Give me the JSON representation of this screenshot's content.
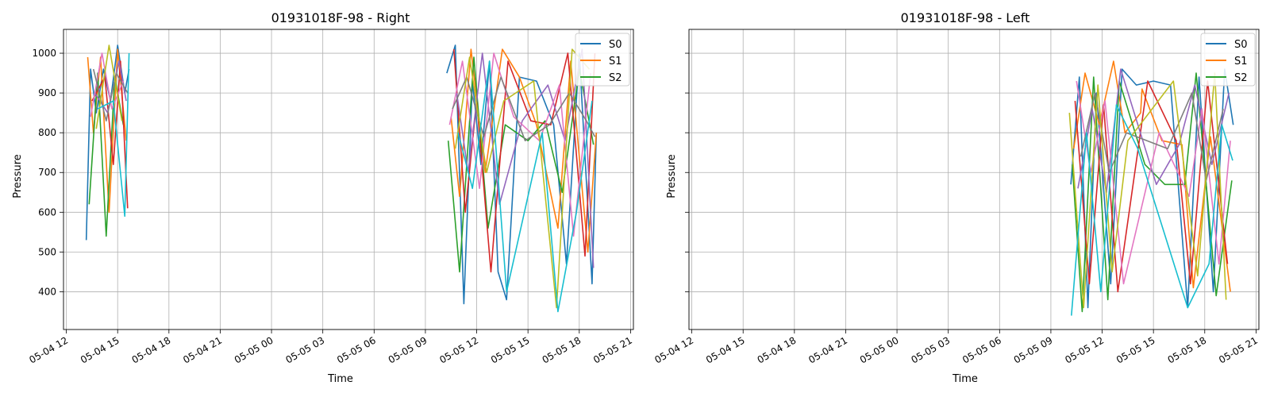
{
  "chart_data": [
    {
      "type": "line",
      "title": "01931018F-98 - Right",
      "xlabel": "Time",
      "ylabel": "Pressure",
      "x_range": [
        "2024-05-04 11:50",
        "2024-05-05 21:10"
      ],
      "ylim": [
        305,
        1060
      ],
      "x_ticks": [
        "05-04 12",
        "05-04 15",
        "05-04 18",
        "05-04 21",
        "05-05 00",
        "05-05 03",
        "05-05 06",
        "05-05 09",
        "05-05 12",
        "05-05 15",
        "05-05 18",
        "05-05 21"
      ],
      "y_ticks": [
        400,
        500,
        600,
        700,
        800,
        900,
        1000
      ],
      "grid": true,
      "legend": {
        "position": "upper right",
        "entries": [
          "S0",
          "S1",
          "S2"
        ]
      },
      "series": [
        {
          "name": "S0",
          "color": "#1f77b4",
          "segments": [
            {
              "x": [
                "2024-05-04 13:10",
                "2024-05-04 13:25",
                "2024-05-04 13:45",
                "2024-05-04 14:10",
                "2024-05-04 14:35",
                "2024-05-04 15:00",
                "2024-05-04 15:25",
                "2024-05-04 15:40"
              ],
              "y": [
                530,
                960,
                850,
                960,
                880,
                1020,
                900,
                960
              ]
            },
            {
              "x": [
                "2024-05-05 10:15",
                "2024-05-05 10:45",
                "2024-05-05 11:15",
                "2024-05-05 11:45",
                "2024-05-05 12:15",
                "2024-05-05 12:45",
                "2024-05-05 13:15",
                "2024-05-05 13:45",
                "2024-05-05 14:30",
                "2024-05-05 15:30",
                "2024-05-05 16:30",
                "2024-05-05 17:15",
                "2024-05-05 18:00",
                "2024-05-05 18:45",
                "2024-05-05 19:00"
              ],
              "y": [
                950,
                1020,
                370,
                930,
                720,
                980,
                450,
                380,
                940,
                930,
                820,
                470,
                1000,
                420,
                800
              ]
            }
          ]
        },
        {
          "name": "S1",
          "color": "#ff7f0e",
          "segments": [
            {
              "x": [
                "2024-05-04 13:15",
                "2024-05-04 13:35",
                "2024-05-04 14:00",
                "2024-05-04 14:30",
                "2024-05-04 15:00",
                "2024-05-04 15:30"
              ],
              "y": [
                990,
                800,
                990,
                600,
                1010,
                780
              ]
            },
            {
              "x": [
                "2024-05-05 10:30",
                "2024-05-05 11:00",
                "2024-05-05 11:40",
                "2024-05-05 12:30",
                "2024-05-05 13:30",
                "2024-05-05 14:30",
                "2024-05-05 15:30",
                "2024-05-05 16:45",
                "2024-05-05 17:30",
                "2024-05-05 18:30",
                "2024-05-05 19:00"
              ],
              "y": [
                840,
                640,
                1010,
                700,
                1010,
                940,
                820,
                560,
                980,
                500,
                800
              ]
            }
          ]
        },
        {
          "name": "S2",
          "color": "#2ca02c",
          "segments": [
            {
              "x": [
                "2024-05-04 13:20",
                "2024-05-04 13:50",
                "2024-05-04 14:20",
                "2024-05-04 14:50",
                "2024-05-04 15:20"
              ],
              "y": [
                620,
                950,
                540,
                940,
                820
              ]
            },
            {
              "x": [
                "2024-05-05 10:20",
                "2024-05-05 11:00",
                "2024-05-05 11:50",
                "2024-05-05 12:40",
                "2024-05-05 13:40",
                "2024-05-05 15:00",
                "2024-05-05 16:00",
                "2024-05-05 17:00",
                "2024-05-05 18:00",
                "2024-05-05 18:50"
              ],
              "y": [
                780,
                450,
                990,
                560,
                820,
                780,
                830,
                650,
                960,
                770
              ]
            }
          ]
        },
        {
          "name": "",
          "color": "#d62728",
          "segments": [
            {
              "x": [
                "2024-05-04 13:30",
                "2024-05-04 14:15",
                "2024-05-04 14:45",
                "2024-05-04 15:10",
                "2024-05-04 15:35"
              ],
              "y": [
                880,
                940,
                720,
                980,
                610
              ]
            },
            {
              "x": [
                "2024-05-05 10:40",
                "2024-05-05 11:20",
                "2024-05-05 12:00",
                "2024-05-05 12:50",
                "2024-05-05 13:50",
                "2024-05-05 15:10",
                "2024-05-05 16:20",
                "2024-05-05 17:20",
                "2024-05-05 18:20",
                "2024-05-05 18:55"
              ],
              "y": [
                1010,
                600,
                880,
                450,
                980,
                830,
                820,
                1000,
                490,
                1000
              ]
            }
          ]
        },
        {
          "name": "",
          "color": "#9467bd",
          "segments": [
            {
              "x": [
                "2024-05-04 13:40",
                "2024-05-04 14:25",
                "2024-05-04 15:05",
                "2024-05-04 15:30"
              ],
              "y": [
                900,
                850,
                980,
                880
              ]
            },
            {
              "x": [
                "2024-05-05 10:50",
                "2024-05-05 11:30",
                "2024-05-05 12:20",
                "2024-05-05 13:20",
                "2024-05-05 14:40",
                "2024-05-05 16:10",
                "2024-05-05 17:10",
                "2024-05-05 18:10",
                "2024-05-05 18:50"
              ],
              "y": [
                900,
                700,
                1000,
                620,
                830,
                920,
                780,
                1010,
                460
              ]
            }
          ]
        },
        {
          "name": "",
          "color": "#e377c2",
          "segments": [
            {
              "x": [
                "2024-05-04 13:25",
                "2024-05-04 14:05",
                "2024-05-04 14:40",
                "2024-05-04 15:20"
              ],
              "y": [
                840,
                1000,
                860,
                930
              ]
            },
            {
              "x": [
                "2024-05-05 10:25",
                "2024-05-05 11:10",
                "2024-05-05 12:10",
                "2024-05-05 13:00",
                "2024-05-05 14:10",
                "2024-05-05 15:40",
                "2024-05-05 16:50",
                "2024-05-05 17:40",
                "2024-05-05 18:40"
              ],
              "y": [
                820,
                980,
                660,
                1000,
                840,
                780,
                920,
                540,
                950
              ]
            }
          ]
        },
        {
          "name": "",
          "color": "#7f7f7f",
          "segments": [
            {
              "x": [
                "2024-05-04 13:35",
                "2024-05-04 14:20",
                "2024-05-04 14:55",
                "2024-05-04 15:35"
              ],
              "y": [
                960,
                830,
                950,
                900
              ]
            },
            {
              "x": [
                "2024-05-05 10:35",
                "2024-05-05 11:25",
                "2024-05-05 12:25",
                "2024-05-05 13:25",
                "2024-05-05 14:50",
                "2024-05-05 16:15",
                "2024-05-05 17:25",
                "2024-05-05 18:25",
                "2024-05-05 18:55"
              ],
              "y": [
                860,
                940,
                790,
                940,
                780,
                820,
                900,
                830,
                790
              ]
            }
          ]
        },
        {
          "name": "",
          "color": "#bcbd22",
          "segments": [
            {
              "x": [
                "2024-05-04 13:45",
                "2024-05-04 14:30",
                "2024-05-04 15:15"
              ],
              "y": [
                810,
                1020,
                830
              ]
            },
            {
              "x": [
                "2024-05-05 10:45",
                "2024-05-05 11:35",
                "2024-05-05 12:35",
                "2024-05-05 13:35",
                "2024-05-05 15:20",
                "2024-05-05 16:40",
                "2024-05-05 17:35",
                "2024-05-05 18:35"
              ],
              "y": [
                760,
                990,
                700,
                880,
                930,
                360,
                1010,
                960
              ]
            }
          ]
        },
        {
          "name": "",
          "color": "#17becf",
          "segments": [
            {
              "x": [
                "2024-05-04 13:50",
                "2024-05-04 14:45",
                "2024-05-04 15:25",
                "2024-05-04 15:40"
              ],
              "y": [
                860,
                880,
                590,
                1000
              ]
            },
            {
              "x": [
                "2024-05-05 10:55",
                "2024-05-05 11:45",
                "2024-05-05 12:45",
                "2024-05-05 13:45",
                "2024-05-05 15:50",
                "2024-05-05 16:45",
                "2024-05-05 17:50",
                "2024-05-05 18:45"
              ],
              "y": [
                800,
                660,
                980,
                400,
                800,
                350,
                600,
                880
              ]
            }
          ]
        }
      ]
    },
    {
      "type": "line",
      "title": "01931018F-98 - Left",
      "xlabel": "Time",
      "ylabel": "Pressure",
      "x_range": [
        "2024-05-04 11:50",
        "2024-05-05 21:10"
      ],
      "ylim": [
        305,
        1060
      ],
      "x_ticks": [
        "05-04 12",
        "05-04 15",
        "05-04 18",
        "05-04 21",
        "05-05 00",
        "05-05 03",
        "05-05 06",
        "05-05 09",
        "05-05 12",
        "05-05 15",
        "05-05 18",
        "05-05 21"
      ],
      "y_ticks": [
        400,
        500,
        600,
        700,
        800,
        900,
        1000
      ],
      "grid": true,
      "legend": {
        "position": "upper right",
        "entries": [
          "S0",
          "S1",
          "S2"
        ]
      },
      "series": [
        {
          "name": "S0",
          "color": "#1f77b4",
          "segments": [
            {
              "x": [
                "2024-05-05 10:10",
                "2024-05-05 10:40",
                "2024-05-05 11:10",
                "2024-05-05 11:40",
                "2024-05-05 12:30",
                "2024-05-05 13:10",
                "2024-05-05 14:00",
                "2024-05-05 15:00",
                "2024-05-05 16:00",
                "2024-05-05 17:00",
                "2024-05-05 17:40",
                "2024-05-05 18:30",
                "2024-05-05 19:10",
                "2024-05-05 19:40"
              ],
              "y": [
                670,
                940,
                360,
                900,
                420,
                960,
                920,
                930,
                920,
                360,
                940,
                400,
                960,
                820
              ]
            }
          ]
        },
        {
          "name": "S1",
          "color": "#ff7f0e",
          "segments": [
            {
              "x": [
                "2024-05-05 10:20",
                "2024-05-05 11:00",
                "2024-05-05 11:50",
                "2024-05-05 12:40",
                "2024-05-05 13:20",
                "2024-05-05 14:15",
                "2024-05-05 14:20",
                "2024-05-05 15:30",
                "2024-05-05 16:40",
                "2024-05-05 17:20",
                "2024-05-05 18:20",
                "2024-05-05 19:30"
              ],
              "y": [
                760,
                950,
                820,
                980,
                800,
                850,
                910,
                780,
                770,
                410,
                790,
                400
              ]
            }
          ]
        },
        {
          "name": "S2",
          "color": "#2ca02c",
          "segments": [
            {
              "x": [
                "2024-05-05 10:15",
                "2024-05-05 10:50",
                "2024-05-05 11:30",
                "2024-05-05 12:20",
                "2024-05-05 13:00",
                "2024-05-05 14:30",
                "2024-05-05 15:40",
                "2024-05-05 16:50",
                "2024-05-05 17:30",
                "2024-05-05 18:40",
                "2024-05-05 19:35"
              ],
              "y": [
                720,
                350,
                940,
                380,
                930,
                720,
                670,
                670,
                950,
                390,
                680
              ]
            }
          ]
        },
        {
          "name": "",
          "color": "#d62728",
          "segments": [
            {
              "x": [
                "2024-05-05 10:25",
                "2024-05-05 11:15",
                "2024-05-05 12:05",
                "2024-05-05 12:55",
                "2024-05-05 14:40",
                "2024-05-05 16:20",
                "2024-05-05 17:10",
                "2024-05-05 18:10",
                "2024-05-05 19:20"
              ],
              "y": [
                880,
                420,
                870,
                400,
                930,
                780,
                420,
                930,
                470
              ]
            }
          ]
        },
        {
          "name": "",
          "color": "#9467bd",
          "segments": [
            {
              "x": [
                "2024-05-05 10:35",
                "2024-05-05 11:25",
                "2024-05-05 12:15",
                "2024-05-05 13:05",
                "2024-05-05 15:10",
                "2024-05-05 16:30",
                "2024-05-05 17:25",
                "2024-05-05 18:25",
                "2024-05-05 19:25"
              ],
              "y": [
                660,
                860,
                650,
                960,
                670,
                770,
                920,
                720,
                900
              ]
            }
          ]
        },
        {
          "name": "",
          "color": "#e377c2",
          "segments": [
            {
              "x": [
                "2024-05-05 10:30",
                "2024-05-05 11:20",
                "2024-05-05 12:10",
                "2024-05-05 13:15",
                "2024-05-05 15:20",
                "2024-05-05 17:05",
                "2024-05-05 17:50",
                "2024-05-05 18:50",
                "2024-05-05 19:30"
              ],
              "y": [
                930,
                700,
                880,
                420,
                800,
                640,
                860,
                470,
                780
              ]
            }
          ]
        },
        {
          "name": "",
          "color": "#7f7f7f",
          "segments": [
            {
              "x": [
                "2024-05-05 10:45",
                "2024-05-05 11:35",
                "2024-05-05 12:25",
                "2024-05-05 13:25",
                "2024-05-05 15:50",
                "2024-05-05 17:15",
                "2024-05-05 18:05",
                "2024-05-05 19:05"
              ],
              "y": [
                740,
                900,
                700,
                800,
                760,
                900,
                680,
                860
              ]
            }
          ]
        },
        {
          "name": "",
          "color": "#bcbd22",
          "segments": [
            {
              "x": [
                "2024-05-05 10:05",
                "2024-05-05 10:55",
                "2024-05-05 11:45",
                "2024-05-05 12:35",
                "2024-05-05 13:30",
                "2024-05-05 16:10",
                "2024-05-05 17:35",
                "2024-05-05 18:35",
                "2024-05-05 19:15"
              ],
              "y": [
                850,
                360,
                920,
                450,
                780,
                930,
                440,
                950,
                380
              ]
            }
          ]
        },
        {
          "name": "",
          "color": "#17becf",
          "segments": [
            {
              "x": [
                "2024-05-05 10:12",
                "2024-05-05 11:05",
                "2024-05-05 11:55",
                "2024-05-05 12:50",
                "2024-05-05 14:05",
                "2024-05-05 17:00",
                "2024-05-05 18:15",
                "2024-05-05 19:00",
                "2024-05-05 19:38"
              ],
              "y": [
                340,
                800,
                400,
                870,
                760,
                360,
                470,
                820,
                730
              ]
            }
          ]
        }
      ]
    }
  ]
}
